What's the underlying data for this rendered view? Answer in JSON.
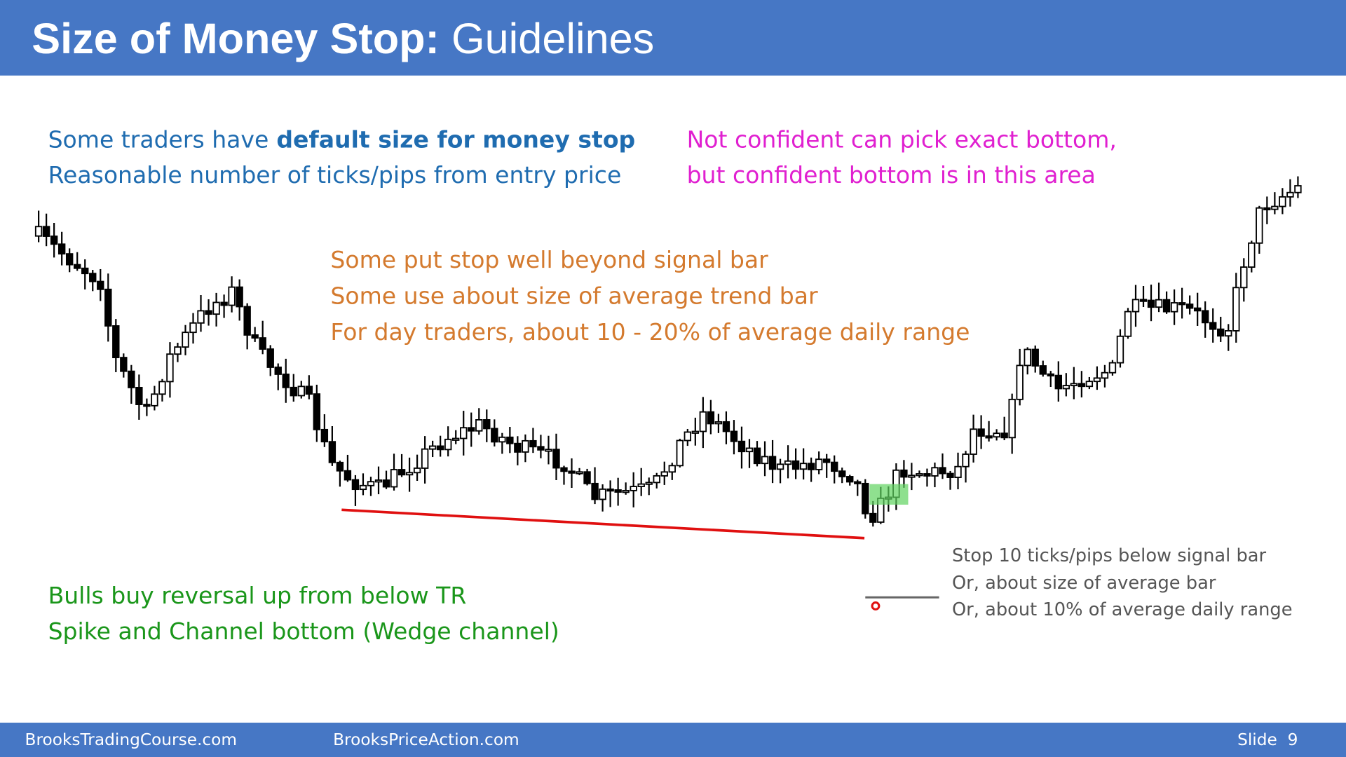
{
  "header": {
    "title_bold": "Size of Money Stop:",
    "title_rest": "Guidelines"
  },
  "notes": {
    "blue": {
      "line1_plain": "Some traders have",
      "line1_bold": "default size for money stop",
      "line2": "Reasonable number of ticks/pips from entry price"
    },
    "magenta": [
      "Not confident can pick exact bottom,",
      "but confident bottom is in this area"
    ],
    "orange": [
      "Some put stop well beyond signal bar",
      "Some use about size of average trend bar",
      "For day traders, about 10 - 20% of average daily range"
    ],
    "green": [
      "Bulls buy reversal up from below TR",
      "Spike and Channel bottom (Wedge channel)"
    ],
    "gray": [
      "Stop 10 ticks/pips below signal bar",
      "Or, about size of average bar",
      "Or, about 10% of average daily range"
    ]
  },
  "footer": {
    "left": "BrooksTradingCourse.com",
    "middle": "BrooksPriceAction.com",
    "slide": "Slide  9"
  }
}
